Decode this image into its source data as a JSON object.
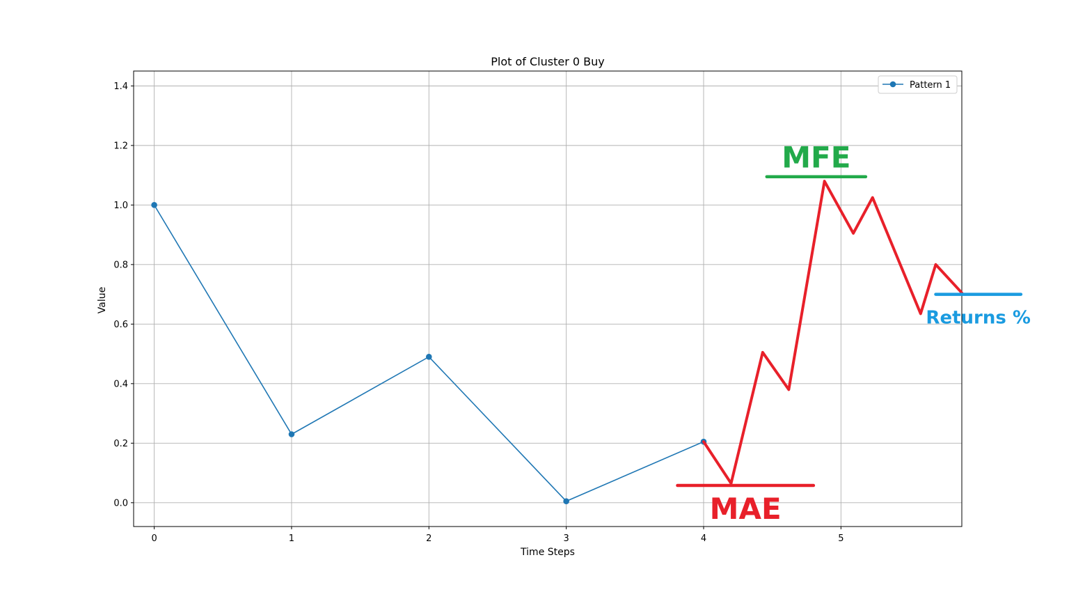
{
  "chart_data": {
    "type": "line",
    "title": "Plot of Cluster 0 Buy",
    "xlabel": "Time Steps",
    "ylabel": "Value",
    "xlim": [
      -0.15,
      5.88
    ],
    "ylim": [
      -0.08,
      1.45
    ],
    "x_ticks": [
      "0",
      "1",
      "2",
      "3",
      "4",
      "5"
    ],
    "y_ticks": [
      "0.0",
      "0.2",
      "0.4",
      "0.6",
      "0.8",
      "1.0",
      "1.2",
      "1.4"
    ],
    "grid": true,
    "legend_position": "top-right",
    "series": [
      {
        "name": "Pattern 1",
        "color": "#1f77b4",
        "marker": "circle",
        "x": [
          0,
          1,
          2,
          3,
          4
        ],
        "y": [
          1.0,
          0.23,
          0.49,
          0.005,
          0.205
        ]
      }
    ],
    "drawn_path": {
      "color": "#e8202a",
      "x": [
        4.0,
        4.2,
        4.43,
        4.62,
        4.88,
        5.09,
        5.23,
        5.58,
        5.69,
        5.88
      ],
      "y": [
        0.205,
        0.065,
        0.505,
        0.38,
        1.08,
        0.905,
        1.025,
        0.635,
        0.8,
        0.705
      ]
    },
    "annotations": [
      {
        "text": "MFE",
        "color": "#22aa4a",
        "line_x": [
          4.46,
          5.18
        ],
        "line_y": 1.095
      },
      {
        "text": "MAE",
        "color": "#e8202a",
        "line_x": [
          3.81,
          4.8
        ],
        "line_y": 0.058
      },
      {
        "text": "Returns %",
        "color": "#1a9be0",
        "line_x": [
          5.69,
          6.31
        ],
        "line_y": 0.7
      }
    ]
  }
}
